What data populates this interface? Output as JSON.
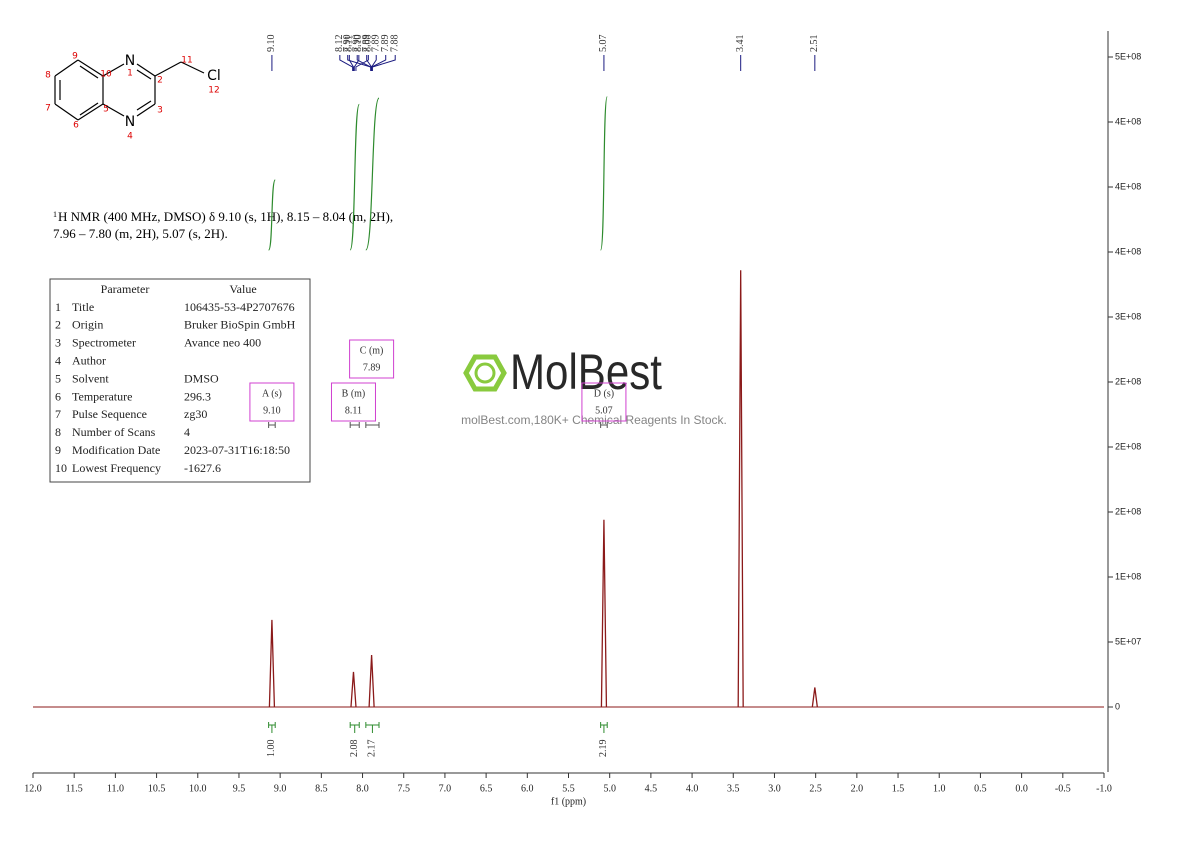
{
  "chart_data": {
    "type": "nmr",
    "xlabel": "f1 (ppm)",
    "xlim": [
      12,
      -1
    ],
    "xticks": [
      {
        "value": 12,
        "label": "12.0"
      },
      11.5,
      {
        "value": 11,
        "label": "11.0"
      },
      10.5,
      {
        "value": 10,
        "label": "10.0"
      },
      9.5,
      {
        "value": 9,
        "label": "9.0"
      },
      8.5,
      {
        "value": 8,
        "label": "8.0"
      },
      7.5,
      {
        "value": 7,
        "label": "7.0"
      },
      6.5,
      {
        "value": 6,
        "label": "6.0"
      },
      5.5,
      {
        "value": 5,
        "label": "5.0"
      },
      4.5,
      {
        "value": 4,
        "label": "4.0"
      },
      3.5,
      {
        "value": 3,
        "label": "3.0"
      },
      2.5,
      {
        "value": 2,
        "label": "2.0"
      },
      1.5,
      {
        "value": 1,
        "label": "1.0"
      },
      0.5,
      {
        "value": 0,
        "label": "0.0"
      },
      -0.5,
      {
        "value": -1,
        "label": "-1.0"
      }
    ],
    "ylim": [
      -50000000,
      520000000
    ],
    "yticks": [
      0,
      {
        "value": 50000000,
        "label": "5E+07"
      },
      {
        "value": 100000000,
        "label": "1E+08"
      },
      {
        "value": 150000000,
        "label": "2E+08"
      },
      {
        "value": 200000000,
        "label": "2E+08"
      },
      {
        "value": 250000000,
        "label": "2E+08"
      },
      {
        "value": 300000000,
        "label": "3E+08"
      },
      {
        "value": 350000000,
        "label": "4E+08"
      },
      {
        "value": 400000000,
        "label": "4E+08"
      },
      {
        "value": 450000000,
        "label": "4E+08"
      },
      {
        "value": 500000000,
        "label": "5E+08"
      }
    ],
    "y_axis_side": "right",
    "color": "#8b1a1a",
    "peaks": {
      "x": [
        9.1,
        8.11,
        7.89,
        5.07,
        3.41,
        2.51
      ],
      "values": [
        67000000,
        27000000,
        40000000,
        144000000,
        336000000,
        15000000
      ]
    },
    "peak_picks": [
      {
        "value": 9.1,
        "label": "9.10"
      },
      8.12,
      8.11,
      {
        "value": 8.1,
        "label": "8.10"
      },
      8.08,
      {
        "value": 7.9,
        "label": "7.90"
      },
      {
        "value": 7.9,
        "label": "7.90"
      },
      7.89,
      7.89,
      7.89,
      7.88,
      5.07,
      3.41,
      2.51
    ],
    "pick_color": "#1a1a80",
    "integrals": [
      {
        "range": [
          9.14,
          9.06
        ],
        "value": 1,
        "label": "1.00"
      },
      {
        "range": [
          8.15,
          8.04
        ],
        "value": 2.08
      },
      {
        "range": [
          7.96,
          7.8
        ],
        "value": 2.17
      },
      {
        "range": [
          5.11,
          5.03
        ],
        "value": 2.19
      }
    ],
    "integral_color": "#2e8b2e",
    "multiplets": [
      {
        "name": "A (s)",
        "shift": {
          "value": 9.1,
          "label": "9.10"
        },
        "range": [
          9.14,
          9.06
        ]
      },
      {
        "name": "B (m)",
        "shift": 8.11,
        "range": [
          8.15,
          8.04
        ]
      },
      {
        "name": "C (m)",
        "shift": 7.89,
        "range": [
          7.96,
          7.8
        ]
      },
      {
        "name": "D (s)",
        "shift": 5.07,
        "range": [
          5.11,
          5.03
        ]
      }
    ],
    "multiplet_color": "#d040d0"
  },
  "description": [
    "H NMR (400 MHz, DMSO) δ 9.10 (s, 1H), 8.15 – 8.04 (m, 2H),",
    "7.96 – 7.80 (m, 2H), 5.07 (s, 2H)."
  ],
  "description_sup": "1",
  "table": {
    "header": [
      "Parameter",
      "Value"
    ],
    "rows": [
      [
        1,
        "Title",
        "106435-53-4P2707676"
      ],
      [
        2,
        "Origin",
        "Bruker BioSpin GmbH"
      ],
      [
        3,
        "Spectrometer",
        "Avance neo 400"
      ],
      [
        4,
        "Author"
      ],
      [
        5,
        "Solvent",
        "DMSO"
      ],
      [
        6,
        "Temperature",
        296.3
      ],
      [
        7,
        "Pulse Sequence",
        "zg30"
      ],
      [
        8,
        "Number of Scans",
        4
      ],
      [
        9,
        "Modification Date",
        "2023-07-31T16:18:50"
      ],
      [
        10,
        "Lowest Frequency",
        -1627.6
      ]
    ]
  },
  "watermark": {
    "brand": "MolBest",
    "tagline": "molBest.com,180K+ Chemical Reagents In Stock."
  },
  "structure": {
    "atoms": [
      "N",
      "N",
      "Cl"
    ],
    "numbers": [
      1,
      2,
      3,
      4,
      5,
      6,
      7,
      8,
      9,
      10,
      11,
      12
    ]
  }
}
